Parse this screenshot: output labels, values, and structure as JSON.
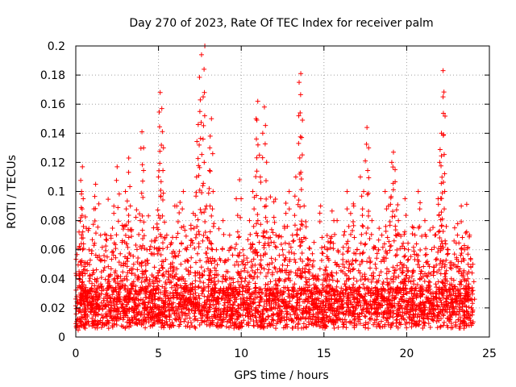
{
  "chart_data": {
    "type": "scatter",
    "title": "Day 270 of 2023, Rate Of TEC Index for receiver palm",
    "xlabel": "GPS time / hours",
    "ylabel": "ROTI / TECUs",
    "xlim": [
      0,
      25
    ],
    "ylim": [
      0,
      0.2
    ],
    "xticks": [
      "0",
      "5",
      "10",
      "15",
      "20",
      "25"
    ],
    "yticks": [
      "0",
      "0.02",
      "0.04",
      "0.06",
      "0.08",
      "0.1",
      "0.12",
      "0.14",
      "0.16",
      "0.18",
      "0.2"
    ],
    "grid": true,
    "marker": "plus",
    "color": "#ff0000",
    "x_range_of_points": [
      0,
      24
    ],
    "base_level_approx": 0.02,
    "peaks": [
      {
        "x": 0.4,
        "y": 0.117
      },
      {
        "x": 1.2,
        "y": 0.105
      },
      {
        "x": 2.5,
        "y": 0.117
      },
      {
        "x": 3.2,
        "y": 0.123
      },
      {
        "x": 4.0,
        "y": 0.141
      },
      {
        "x": 5.1,
        "y": 0.168
      },
      {
        "x": 5.2,
        "y": 0.157
      },
      {
        "x": 7.6,
        "y": 0.194
      },
      {
        "x": 7.8,
        "y": 0.2
      },
      {
        "x": 7.4,
        "y": 0.146
      },
      {
        "x": 8.2,
        "y": 0.15
      },
      {
        "x": 11.0,
        "y": 0.162
      },
      {
        "x": 11.4,
        "y": 0.158
      },
      {
        "x": 13.6,
        "y": 0.181
      },
      {
        "x": 13.7,
        "y": 0.149
      },
      {
        "x": 17.6,
        "y": 0.144
      },
      {
        "x": 19.2,
        "y": 0.127
      },
      {
        "x": 22.2,
        "y": 0.183
      },
      {
        "x": 22.2,
        "y": 0.165
      },
      {
        "x": 22.1,
        "y": 0.14
      }
    ],
    "points": [
      [
        0.1,
        0.012
      ],
      [
        0.2,
        0.045
      ],
      [
        0.3,
        0.082
      ],
      [
        0.35,
        0.1
      ],
      [
        0.45,
        0.095
      ],
      [
        0.6,
        0.03
      ],
      [
        0.8,
        0.06
      ],
      [
        1.0,
        0.02
      ],
      [
        1.1,
        0.088
      ],
      [
        1.3,
        0.04
      ],
      [
        1.5,
        0.07
      ],
      [
        1.7,
        0.025
      ],
      [
        1.9,
        0.055
      ],
      [
        2.1,
        0.015
      ],
      [
        2.3,
        0.085
      ],
      [
        2.6,
        0.035
      ],
      [
        2.8,
        0.065
      ],
      [
        3.0,
        0.1
      ],
      [
        3.3,
        0.09
      ],
      [
        3.5,
        0.05
      ],
      [
        3.7,
        0.03
      ],
      [
        3.9,
        0.08
      ],
      [
        4.1,
        0.13
      ],
      [
        4.3,
        0.06
      ],
      [
        4.5,
        0.02
      ],
      [
        4.7,
        0.075
      ],
      [
        4.9,
        0.04
      ],
      [
        5.0,
        0.11
      ],
      [
        5.3,
        0.13
      ],
      [
        5.5,
        0.07
      ],
      [
        5.7,
        0.03
      ],
      [
        5.9,
        0.055
      ],
      [
        6.1,
        0.09
      ],
      [
        6.3,
        0.04
      ],
      [
        6.5,
        0.1
      ],
      [
        6.7,
        0.06
      ],
      [
        6.9,
        0.025
      ],
      [
        7.1,
        0.085
      ],
      [
        7.3,
        0.11
      ],
      [
        7.5,
        0.155
      ],
      [
        7.7,
        0.165
      ],
      [
        7.9,
        0.09
      ],
      [
        8.1,
        0.13
      ],
      [
        8.3,
        0.1
      ],
      [
        8.5,
        0.06
      ],
      [
        8.7,
        0.03
      ],
      [
        8.9,
        0.08
      ],
      [
        9.1,
        0.045
      ],
      [
        9.3,
        0.07
      ],
      [
        9.5,
        0.02
      ],
      [
        9.7,
        0.095
      ],
      [
        9.9,
        0.108
      ],
      [
        10.1,
        0.06
      ],
      [
        10.3,
        0.035
      ],
      [
        10.5,
        0.08
      ],
      [
        10.7,
        0.1
      ],
      [
        10.9,
        0.15
      ],
      [
        11.1,
        0.125
      ],
      [
        11.3,
        0.14
      ],
      [
        11.5,
        0.09
      ],
      [
        11.7,
        0.05
      ],
      [
        11.9,
        0.03
      ],
      [
        12.1,
        0.07
      ],
      [
        12.3,
        0.04
      ],
      [
        12.5,
        0.06
      ],
      [
        12.7,
        0.085
      ],
      [
        12.9,
        0.1
      ],
      [
        13.1,
        0.07
      ],
      [
        13.3,
        0.11
      ],
      [
        13.5,
        0.175
      ],
      [
        13.8,
        0.09
      ],
      [
        14.0,
        0.05
      ],
      [
        14.2,
        0.03
      ],
      [
        14.4,
        0.065
      ],
      [
        14.6,
        0.04
      ],
      [
        14.8,
        0.09
      ],
      [
        15.0,
        0.02
      ],
      [
        15.2,
        0.06
      ],
      [
        15.4,
        0.035
      ],
      [
        15.6,
        0.08
      ],
      [
        15.8,
        0.05
      ],
      [
        16.0,
        0.03
      ],
      [
        16.2,
        0.07
      ],
      [
        16.4,
        0.1
      ],
      [
        16.6,
        0.045
      ],
      [
        16.8,
        0.09
      ],
      [
        17.0,
        0.06
      ],
      [
        17.2,
        0.11
      ],
      [
        17.4,
        0.1
      ],
      [
        17.7,
        0.13
      ],
      [
        17.9,
        0.08
      ],
      [
        18.1,
        0.05
      ],
      [
        18.3,
        0.03
      ],
      [
        18.5,
        0.07
      ],
      [
        18.7,
        0.1
      ],
      [
        18.9,
        0.09
      ],
      [
        19.1,
        0.12
      ],
      [
        19.3,
        0.115
      ],
      [
        19.5,
        0.08
      ],
      [
        19.7,
        0.05
      ],
      [
        19.9,
        0.095
      ],
      [
        20.1,
        0.06
      ],
      [
        20.3,
        0.03
      ],
      [
        20.5,
        0.07
      ],
      [
        20.7,
        0.1
      ],
      [
        20.9,
        0.045
      ],
      [
        21.1,
        0.08
      ],
      [
        21.3,
        0.05
      ],
      [
        21.5,
        0.03
      ],
      [
        21.7,
        0.07
      ],
      [
        21.9,
        0.095
      ],
      [
        22.0,
        0.12
      ],
      [
        22.3,
        0.1
      ],
      [
        22.5,
        0.06
      ],
      [
        22.7,
        0.04
      ],
      [
        22.9,
        0.075
      ],
      [
        23.1,
        0.03
      ],
      [
        23.3,
        0.09
      ],
      [
        23.5,
        0.06
      ],
      [
        23.7,
        0.04
      ],
      [
        23.8,
        0.07
      ],
      [
        23.9,
        0.02
      ],
      [
        24.0,
        0.05
      ]
    ]
  }
}
